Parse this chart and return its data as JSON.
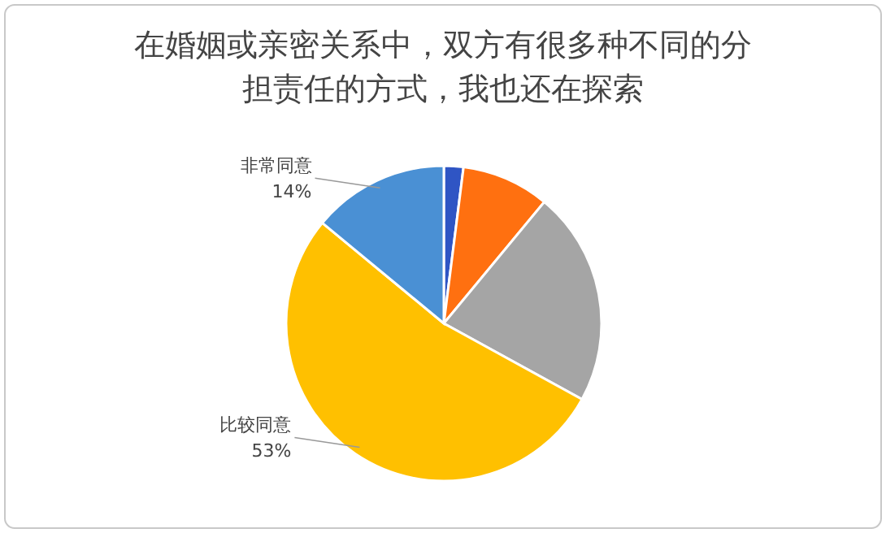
{
  "chart_data": {
    "type": "pie",
    "title": "在婚姻或亲密关系中，双方有很多种不同的分担责任的方式，我也还在探索",
    "categories": [
      null,
      null,
      null,
      "比较同意",
      "非常同意"
    ],
    "values": [
      2,
      9,
      22,
      53,
      14
    ],
    "colors": [
      "#2f55c4",
      "#ff7010",
      "#a5a5a5",
      "#ffc000",
      "#4a90d4"
    ],
    "value_labels": [
      null,
      null,
      null,
      "53%",
      "14%"
    ]
  }
}
